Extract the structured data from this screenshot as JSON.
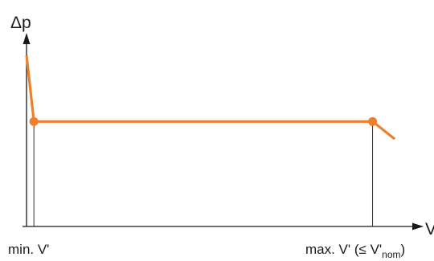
{
  "colors": {
    "curve": "#EE7F2D",
    "axis": "#1a1a1a",
    "guide": "#1a1a1a",
    "background": "#ffffff"
  },
  "chart_data": {
    "type": "line",
    "title": "",
    "ylabel": "Δp",
    "xlabel": "V'",
    "x_ticks": [
      {
        "x": 0.02,
        "label": "min. V'"
      },
      {
        "x": 0.94,
        "label_pre": "max. V' (≤ V'",
        "label_sub": "nom",
        "label_post": ")"
      }
    ],
    "xlim": [
      0,
      1.05
    ],
    "ylim": [
      0,
      1
    ],
    "grid": false,
    "legend": "none",
    "series": [
      {
        "x": [
          0.0,
          0.02,
          0.94,
          1.0
        ],
        "y": [
          0.88,
          0.54,
          0.54,
          0.45
        ],
        "markers": [
          1,
          2
        ]
      }
    ]
  }
}
